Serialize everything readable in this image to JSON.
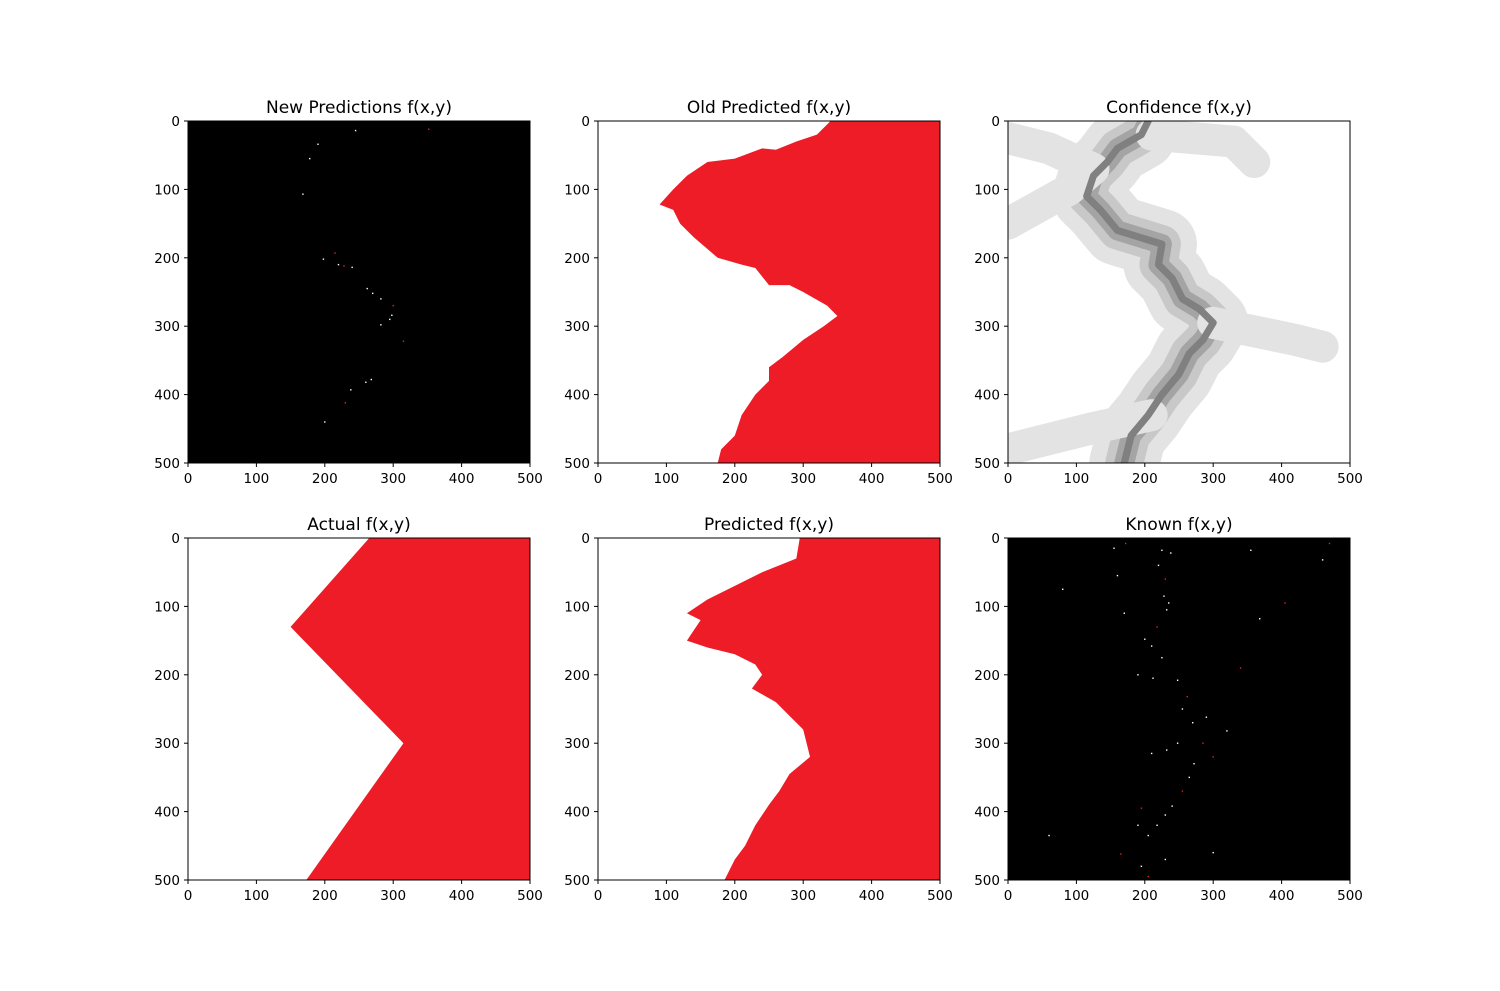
{
  "colors": {
    "red": "#ed1c27",
    "white": "#ffffff",
    "black": "#000000",
    "conf_light": "#e3e3e3",
    "conf_mid": "#c8c8c8",
    "conf_dark": "#a4a4a4",
    "conf_core": "#808080"
  },
  "chart_data": [
    {
      "type": "heatmap",
      "title": "New Predictions f(x,y)",
      "xlim": [
        0,
        500
      ],
      "ylim": [
        500,
        0
      ],
      "xticks": [
        "0",
        "100",
        "200",
        "300",
        "400",
        "500"
      ],
      "yticks": [
        "0",
        "100",
        "200",
        "300",
        "400",
        "500"
      ],
      "background": "black",
      "sample_points": [
        [
          245,
          14
        ],
        [
          352,
          12
        ],
        [
          190,
          34
        ],
        [
          178,
          55
        ],
        [
          168,
          107
        ],
        [
          215,
          193
        ],
        [
          198,
          202
        ],
        [
          220,
          210
        ],
        [
          240,
          214
        ],
        [
          228,
          212
        ],
        [
          262,
          245
        ],
        [
          270,
          252
        ],
        [
          282,
          260
        ],
        [
          300,
          270
        ],
        [
          298,
          284
        ],
        [
          295,
          290
        ],
        [
          282,
          298
        ],
        [
          315,
          322
        ],
        [
          268,
          378
        ],
        [
          260,
          382
        ],
        [
          238,
          393
        ],
        [
          230,
          412
        ],
        [
          200,
          440
        ]
      ]
    },
    {
      "type": "heatmap",
      "title": "Old Predicted f(x,y)",
      "xlim": [
        0,
        500
      ],
      "ylim": [
        500,
        0
      ],
      "xticks": [
        "0",
        "100",
        "200",
        "300",
        "400",
        "500"
      ],
      "yticks": [
        "0",
        "100",
        "200",
        "300",
        "400",
        "500"
      ],
      "boundary": [
        [
          340,
          0
        ],
        [
          320,
          20
        ],
        [
          290,
          30
        ],
        [
          260,
          42
        ],
        [
          240,
          40
        ],
        [
          200,
          55
        ],
        [
          160,
          60
        ],
        [
          130,
          80
        ],
        [
          110,
          100
        ],
        [
          90,
          122
        ],
        [
          110,
          130
        ],
        [
          120,
          150
        ],
        [
          140,
          170
        ],
        [
          175,
          200
        ],
        [
          210,
          210
        ],
        [
          230,
          215
        ],
        [
          250,
          240
        ],
        [
          280,
          240
        ],
        [
          300,
          250
        ],
        [
          335,
          270
        ],
        [
          350,
          285
        ],
        [
          330,
          300
        ],
        [
          300,
          320
        ],
        [
          270,
          345
        ],
        [
          250,
          360
        ],
        [
          250,
          380
        ],
        [
          230,
          400
        ],
        [
          210,
          430
        ],
        [
          200,
          460
        ],
        [
          180,
          480
        ],
        [
          175,
          500
        ]
      ]
    },
    {
      "type": "heatmap",
      "title": "Confidence f(x,y)",
      "xlim": [
        0,
        500
      ],
      "ylim": [
        500,
        0
      ],
      "xticks": [
        "0",
        "100",
        "200",
        "300",
        "400",
        "500"
      ],
      "yticks": [
        "0",
        "100",
        "200",
        "300",
        "400",
        "500"
      ],
      "ridge": [
        [
          205,
          0
        ],
        [
          195,
          20
        ],
        [
          160,
          40
        ],
        [
          145,
          60
        ],
        [
          125,
          80
        ],
        [
          115,
          110
        ],
        [
          135,
          130
        ],
        [
          160,
          160
        ],
        [
          225,
          180
        ],
        [
          220,
          210
        ],
        [
          240,
          230
        ],
        [
          255,
          260
        ],
        [
          280,
          275
        ],
        [
          300,
          295
        ],
        [
          285,
          320
        ],
        [
          265,
          340
        ],
        [
          250,
          370
        ],
        [
          225,
          400
        ],
        [
          205,
          430
        ],
        [
          180,
          460
        ],
        [
          170,
          500
        ]
      ]
    },
    {
      "type": "heatmap",
      "title": "Actual f(x,y)",
      "xlim": [
        0,
        500
      ],
      "ylim": [
        500,
        0
      ],
      "xticks": [
        "0",
        "100",
        "200",
        "300",
        "400",
        "500"
      ],
      "yticks": [
        "0",
        "100",
        "200",
        "300",
        "400",
        "500"
      ],
      "boundary": [
        [
          265,
          0
        ],
        [
          150,
          130
        ],
        [
          315,
          300
        ],
        [
          173,
          500
        ]
      ]
    },
    {
      "type": "heatmap",
      "title": "Predicted f(x,y)",
      "xlim": [
        0,
        500
      ],
      "ylim": [
        500,
        0
      ],
      "xticks": [
        "0",
        "100",
        "200",
        "300",
        "400",
        "500"
      ],
      "yticks": [
        "0",
        "100",
        "200",
        "300",
        "400",
        "500"
      ],
      "boundary": [
        [
          295,
          0
        ],
        [
          290,
          30
        ],
        [
          240,
          50
        ],
        [
          200,
          70
        ],
        [
          160,
          90
        ],
        [
          130,
          110
        ],
        [
          150,
          120
        ],
        [
          130,
          150
        ],
        [
          160,
          160
        ],
        [
          200,
          170
        ],
        [
          230,
          185
        ],
        [
          240,
          200
        ],
        [
          225,
          220
        ],
        [
          260,
          240
        ],
        [
          280,
          260
        ],
        [
          300,
          280
        ],
        [
          305,
          300
        ],
        [
          310,
          320
        ],
        [
          280,
          345
        ],
        [
          265,
          370
        ],
        [
          250,
          390
        ],
        [
          230,
          420
        ],
        [
          215,
          450
        ],
        [
          200,
          470
        ],
        [
          185,
          500
        ]
      ]
    },
    {
      "type": "heatmap",
      "title": "Known f(x,y)",
      "xlim": [
        0,
        500
      ],
      "ylim": [
        500,
        0
      ],
      "xticks": [
        "0",
        "100",
        "200",
        "300",
        "400",
        "500"
      ],
      "yticks": [
        "0",
        "100",
        "200",
        "300",
        "400",
        "500"
      ],
      "background": "black",
      "sample_points": [
        [
          155,
          15
        ],
        [
          172,
          8
        ],
        [
          225,
          18
        ],
        [
          238,
          22
        ],
        [
          355,
          18
        ],
        [
          470,
          8
        ],
        [
          460,
          32
        ],
        [
          160,
          55
        ],
        [
          220,
          40
        ],
        [
          230,
          60
        ],
        [
          80,
          75
        ],
        [
          228,
          85
        ],
        [
          232,
          105
        ],
        [
          405,
          95
        ],
        [
          235,
          95
        ],
        [
          170,
          110
        ],
        [
          368,
          118
        ],
        [
          218,
          130
        ],
        [
          200,
          148
        ],
        [
          210,
          158
        ],
        [
          225,
          175
        ],
        [
          340,
          190
        ],
        [
          190,
          200
        ],
        [
          212,
          205
        ],
        [
          248,
          208
        ],
        [
          262,
          232
        ],
        [
          255,
          250
        ],
        [
          270,
          270
        ],
        [
          290,
          262
        ],
        [
          285,
          300
        ],
        [
          248,
          300
        ],
        [
          232,
          310
        ],
        [
          210,
          315
        ],
        [
          300,
          320
        ],
        [
          320,
          282
        ],
        [
          272,
          330
        ],
        [
          265,
          350
        ],
        [
          255,
          370
        ],
        [
          240,
          392
        ],
        [
          230,
          405
        ],
        [
          218,
          420
        ],
        [
          195,
          395
        ],
        [
          190,
          420
        ],
        [
          205,
          435
        ],
        [
          60,
          435
        ],
        [
          165,
          462
        ],
        [
          195,
          480
        ],
        [
          230,
          470
        ],
        [
          300,
          460
        ],
        [
          205,
          495
        ]
      ]
    }
  ]
}
